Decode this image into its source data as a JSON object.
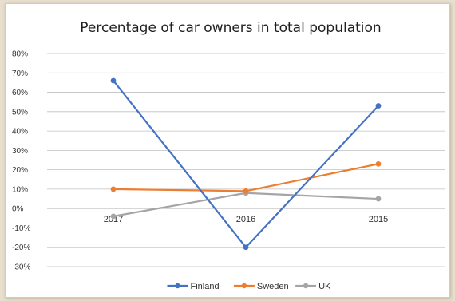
{
  "chart_data": {
    "type": "line",
    "title": "Percentage of car owners in total population",
    "categories": [
      "2017",
      "2016",
      "2015"
    ],
    "series": [
      {
        "name": "Finland",
        "color": "#4472c4",
        "values": [
          66,
          -20,
          53
        ]
      },
      {
        "name": "Sweden",
        "color": "#ed7d31",
        "values": [
          10,
          9,
          23
        ]
      },
      {
        "name": "UK",
        "color": "#a5a5a5",
        "values": [
          -4,
          8,
          5
        ]
      }
    ],
    "ylim": [
      -30,
      80
    ],
    "yticks": [
      -30,
      -20,
      -10,
      0,
      10,
      20,
      30,
      40,
      50,
      60,
      70,
      80
    ],
    "ytick_labels": [
      "-30%",
      "-20%",
      "-10%",
      "0%",
      "10%",
      "20%",
      "30%",
      "40%",
      "50%",
      "60%",
      "70%",
      "80%"
    ],
    "grid": true,
    "legend": "bottom"
  }
}
